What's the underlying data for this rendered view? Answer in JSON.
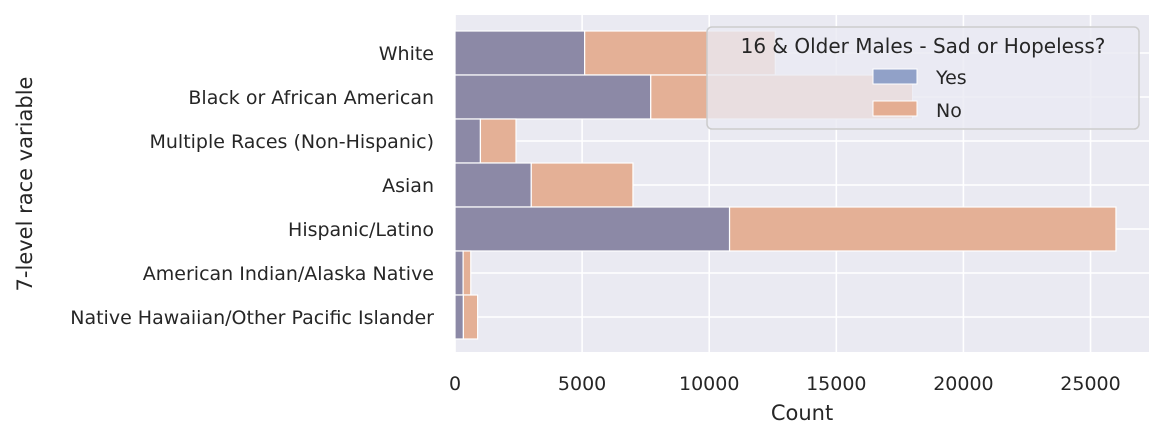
{
  "chart_data": {
    "type": "bar",
    "orientation": "horizontal",
    "stacked": true,
    "xlabel": "Count",
    "ylabel": "7-level race variable",
    "xlim": [
      0,
      27300
    ],
    "xticks": [
      0,
      5000,
      10000,
      15000,
      20000,
      25000
    ],
    "xtick_labels": [
      "0",
      "5000",
      "10000",
      "15000",
      "20000",
      "25000"
    ],
    "categories": [
      "White",
      "Black or African American",
      "Multiple Races (Non-Hispanic)",
      "Asian",
      "Hispanic/Latino",
      "American Indian/Alaska Native",
      "Native Hawaiian/Other Pacific Islander"
    ],
    "series": [
      {
        "name": "Yes",
        "color": "#8c89a6",
        "values": [
          5100,
          7700,
          1000,
          3000,
          10800,
          320,
          330
        ]
      },
      {
        "name": "No",
        "color": "#e4b096",
        "values": [
          7500,
          10300,
          1400,
          4000,
          15200,
          300,
          560
        ]
      }
    ],
    "legend": {
      "title": "16 & Older Males - Sad or Hopeless?",
      "placement": "top-right",
      "swatch_colors": [
        "#91a1c8",
        "#e4ad92"
      ]
    },
    "grid": true,
    "background_color": "#eaeaf2"
  }
}
